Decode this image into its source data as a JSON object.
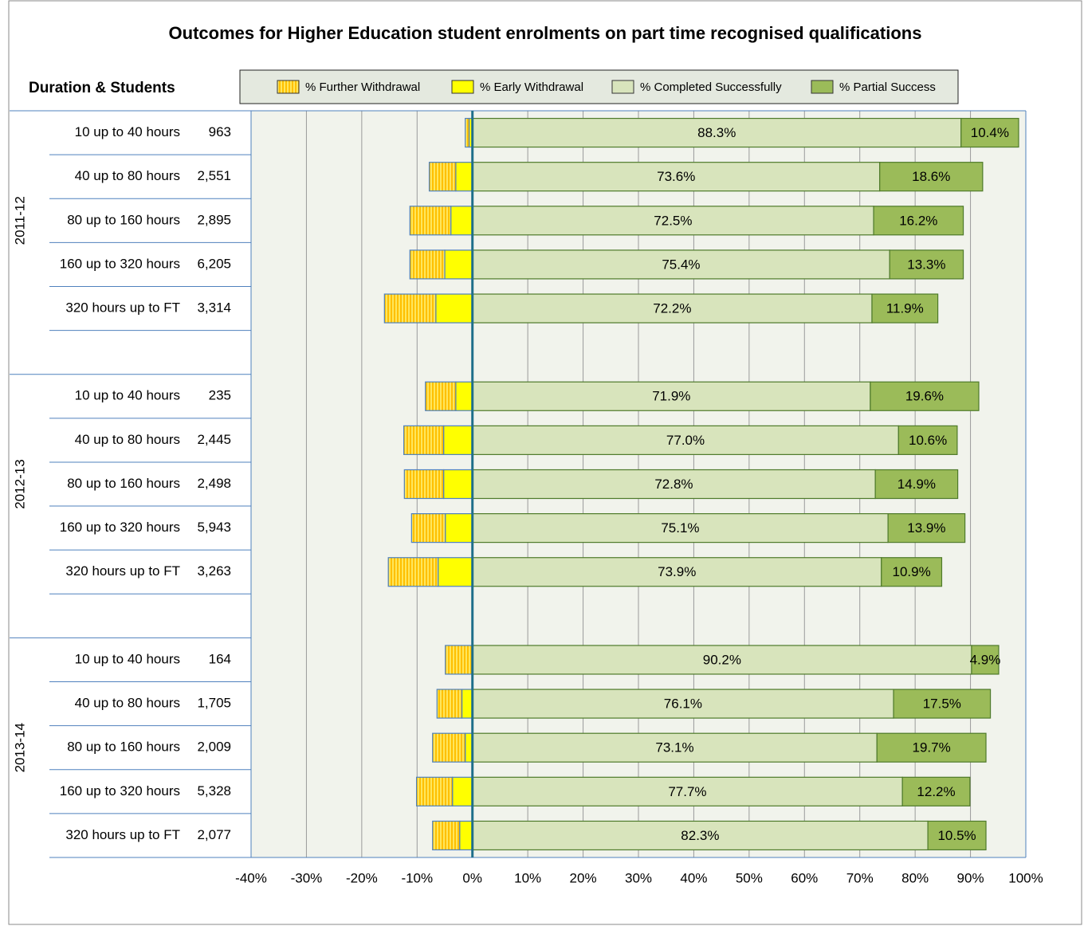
{
  "chart_data": {
    "type": "diverging_stacked_bar",
    "title": "Outcomes for Higher Education student enrolments on part time recognised qualifications",
    "row_header": "Duration & Students",
    "group_labels": [
      "2011-12",
      "2012-13",
      "2013-14"
    ],
    "categories": [
      "10 up to 40 hours",
      "40 up to 80 hours",
      "80 up to 160 hours",
      "160 up to 320 hours",
      "320 hours up to FT",
      "10 up to 40 hours",
      "40 up to 80 hours",
      "80 up to 160 hours",
      "160 up to 320 hours",
      "320 hours up to FT",
      "10 up to 40 hours",
      "40 up to 80 hours",
      "80 up to 160 hours",
      "160 up to 320 hours",
      "320 hours up to FT"
    ],
    "students": [
      "963",
      "2,551",
      "2,895",
      "6,205",
      "3,314",
      "235",
      "2,445",
      "2,498",
      "5,943",
      "3,263",
      "164",
      "1,705",
      "2,009",
      "5,328",
      "2,077"
    ],
    "series": [
      {
        "name": "% Further Withdrawal",
        "color": "#FFC000",
        "values": [
          -0.7,
          -4.8,
          -7.4,
          -6.3,
          -9.3,
          -5.5,
          -7.2,
          -7.1,
          -6.1,
          -9.0,
          -4.9,
          -4.5,
          -5.9,
          -6.5,
          -4.9
        ]
      },
      {
        "name": "% Early Withdrawal",
        "color": "#FFFF00",
        "values": [
          -0.6,
          -3.0,
          -3.9,
          -5.0,
          -6.6,
          -3.0,
          -5.2,
          -5.2,
          -4.9,
          -6.2,
          0,
          -1.9,
          -1.3,
          -3.6,
          -2.3
        ]
      },
      {
        "name": "% Completed Successfully",
        "color": "#D8E4BC",
        "values": [
          88.3,
          73.6,
          72.5,
          75.4,
          72.2,
          71.9,
          77.0,
          72.8,
          75.1,
          73.9,
          90.2,
          76.1,
          73.1,
          77.7,
          82.3
        ],
        "value_labels": [
          "88.3%",
          "73.6%",
          "72.5%",
          "75.4%",
          "72.2%",
          "71.9%",
          "77.0%",
          "72.8%",
          "75.1%",
          "73.9%",
          "90.2%",
          "76.1%",
          "73.1%",
          "77.7%",
          "82.3%"
        ]
      },
      {
        "name": "% Partial Success",
        "color": "#9BBB59",
        "values": [
          10.4,
          18.6,
          16.2,
          13.3,
          11.9,
          19.6,
          10.6,
          14.9,
          13.9,
          10.9,
          4.9,
          17.5,
          19.7,
          12.2,
          10.5
        ],
        "value_labels": [
          "10.4%",
          "18.6%",
          "16.2%",
          "13.3%",
          "11.9%",
          "19.6%",
          "10.6%",
          "14.9%",
          "13.9%",
          "10.9%",
          "4.9%",
          "17.5%",
          "19.7%",
          "12.2%",
          "10.5%"
        ]
      }
    ],
    "xlim": [
      -40,
      100
    ],
    "xticks": [
      {
        "value": -40,
        "label": "-40%"
      },
      {
        "value": -30,
        "label": "-30%"
      },
      {
        "value": -20,
        "label": "-20%"
      },
      {
        "value": -10,
        "label": "-10%"
      },
      {
        "value": 0,
        "label": "0%"
      },
      {
        "value": 10,
        "label": "10%"
      },
      {
        "value": 20,
        "label": "20%"
      },
      {
        "value": 30,
        "label": "30%"
      },
      {
        "value": 40,
        "label": "40%"
      },
      {
        "value": 50,
        "label": "50%"
      },
      {
        "value": 60,
        "label": "60%"
      },
      {
        "value": 70,
        "label": "70%"
      },
      {
        "value": 80,
        "label": "80%"
      },
      {
        "value": 90,
        "label": "90%"
      },
      {
        "value": 100,
        "label": "100%"
      }
    ],
    "grid": true
  }
}
